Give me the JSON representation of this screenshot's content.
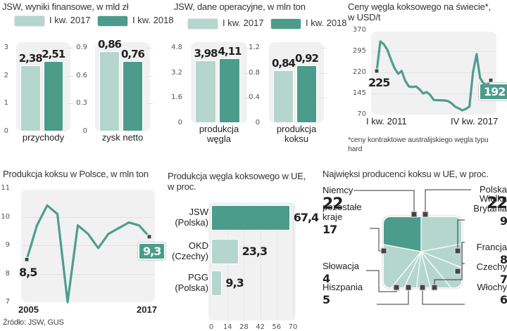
{
  "colors": {
    "light": "#b5d6cd",
    "dark": "#4b9c8a",
    "line": "#4e9e8c",
    "panel": "#f1f1f1"
  },
  "legend": [
    "I kw. 2017",
    "I kw. 2018"
  ],
  "source": "Źródło: JSW, GUS",
  "chart_data": [
    {
      "id": "finance",
      "type": "bar",
      "title": "JSW, wyniki finansowe, w mld zł",
      "legend": [
        "I kw. 2017",
        "I kw. 2018"
      ],
      "panels": [
        {
          "category": "przychody",
          "ylim": [
            0,
            3
          ],
          "ticks": [
            "0",
            "1",
            "2",
            "3"
          ],
          "series": [
            {
              "name": "I kw. 2017",
              "value": 2.38,
              "label": "2,38"
            },
            {
              "name": "I kw. 2018",
              "value": 2.51,
              "label": "2,51"
            }
          ]
        },
        {
          "category": "zysk netto",
          "ylim": [
            0,
            0.9
          ],
          "ticks": [
            "0",
            "0.3",
            "0.6",
            "0.9"
          ],
          "series": [
            {
              "name": "I kw. 2017",
              "value": 0.86,
              "label": "0,86"
            },
            {
              "name": "I kw. 2018",
              "value": 0.76,
              "label": "0,76"
            }
          ]
        }
      ]
    },
    {
      "id": "operations",
      "type": "bar",
      "title": "JSW, dane operacyjne, w mln ton",
      "legend": [
        "I kw. 2017",
        "I kw. 2018"
      ],
      "panels": [
        {
          "category": "produkcja węgla",
          "category_lines": [
            "produkcja",
            "węgla"
          ],
          "ylim": [
            0,
            4.8
          ],
          "ticks": [
            "0",
            "1.6",
            "3.2",
            "4.8"
          ],
          "series": [
            {
              "name": "I kw. 2017",
              "value": 3.98,
              "label": "3,98"
            },
            {
              "name": "I kw. 2018",
              "value": 4.11,
              "label": "4,11"
            }
          ]
        },
        {
          "category": "produkcja koksu",
          "category_lines": [
            "produkcja",
            "koksu"
          ],
          "ylim": [
            0,
            1.2
          ],
          "ticks": [
            "0",
            "0.4",
            "0.8",
            "1.2"
          ],
          "series": [
            {
              "name": "I kw. 2017",
              "value": 0.84,
              "label": "0,84"
            },
            {
              "name": "I kw. 2018",
              "value": 0.92,
              "label": "0,92"
            }
          ]
        }
      ]
    },
    {
      "id": "coal_price",
      "type": "line",
      "title_lines": [
        "Ceny węgla koksowego na świecie*,",
        "w USD/t"
      ],
      "ylim": [
        70,
        370
      ],
      "yticks": [
        "70",
        "145",
        "220",
        "295",
        "370"
      ],
      "ytick_values": [
        70,
        145,
        220,
        295,
        370
      ],
      "x_start_label": "I kw. 2011",
      "x_end_label": "IV kw. 2017",
      "values": [
        225,
        330,
        320,
        300,
        265,
        235,
        215,
        225,
        190,
        170,
        168,
        170,
        160,
        145,
        150,
        140,
        122,
        121,
        121,
        120,
        118,
        110,
        98,
        92,
        85,
        90,
        98,
        220,
        285,
        200,
        180,
        175,
        192
      ],
      "start_label": "225",
      "end_label": "192",
      "footnote_lines": [
        "*ceny kontraktowe australijskiego węgla typu",
        "hard"
      ]
    },
    {
      "id": "coke_poland",
      "type": "line",
      "title": "Produkcja koksu w Polsce, w mln ton",
      "ylim": [
        7,
        11
      ],
      "yticks": [
        "7",
        "8",
        "9",
        "10",
        "11"
      ],
      "ytick_values": [
        7,
        8,
        9,
        10,
        11
      ],
      "x": [
        2005,
        2006,
        2007,
        2008,
        2009,
        2010,
        2011,
        2012,
        2013,
        2014,
        2015,
        2016,
        2017
      ],
      "values": [
        8.5,
        9.7,
        10.4,
        10.1,
        7.0,
        9.7,
        9.4,
        8.9,
        9.4,
        9.6,
        9.8,
        9.7,
        9.3
      ],
      "x_start_label": "2005",
      "x_end_label": "2017",
      "start_label": "8,5",
      "end_label": "9,3"
    },
    {
      "id": "coking_coal_eu",
      "type": "bar",
      "orientation": "horizontal",
      "title_lines": [
        "Produkcja węgla koksowego w UE,",
        "w proc."
      ],
      "xlim": [
        0,
        70
      ],
      "xticks": [
        "0",
        "14",
        "28",
        "42",
        "56",
        "70"
      ],
      "categories": [
        [
          "JSW",
          "(Polska)"
        ],
        [
          "OKD",
          "(Czechy)"
        ],
        [
          "PGG",
          "(Polska)"
        ]
      ],
      "values": [
        67.4,
        23.3,
        9.3
      ],
      "labels": [
        "67,4",
        "23,3",
        "9,3"
      ],
      "highlight": [
        true,
        false,
        false
      ]
    },
    {
      "id": "coke_producers_eu",
      "type": "pie",
      "title": "Najwięksi producenci koksu w UE, w proc.",
      "slices": [
        {
          "name": "Polska",
          "name_lines": [
            "Polska"
          ],
          "value": 22,
          "label": "22",
          "highlight": false
        },
        {
          "name": "Wielka Brytania",
          "name_lines": [
            "Wielka",
            "Brytania"
          ],
          "value": 9,
          "label": "9",
          "highlight": false
        },
        {
          "name": "Francja",
          "name_lines": [
            "Francja"
          ],
          "value": 8,
          "label": "8",
          "highlight": false
        },
        {
          "name": "Czechy",
          "name_lines": [
            "Czechy"
          ],
          "value": 7,
          "label": "7",
          "highlight": false
        },
        {
          "name": "Włochy",
          "name_lines": [
            "Włochy"
          ],
          "value": 6,
          "label": "6",
          "highlight": false
        },
        {
          "name": "Hiszpania",
          "name_lines": [
            "Hiszpania"
          ],
          "value": 5,
          "label": "5",
          "highlight": false
        },
        {
          "name": "Słowacja",
          "name_lines": [
            "Słowacja"
          ],
          "value": 4,
          "label": "4",
          "highlight": false
        },
        {
          "name": "pozostałe kraje",
          "name_lines": [
            "pozostałe",
            "kraje"
          ],
          "value": 17,
          "label": "17",
          "highlight": false
        },
        {
          "name": "Niemcy",
          "name_lines": [
            "Niemcy"
          ],
          "value": 22,
          "label": "22",
          "highlight": true
        }
      ]
    }
  ]
}
